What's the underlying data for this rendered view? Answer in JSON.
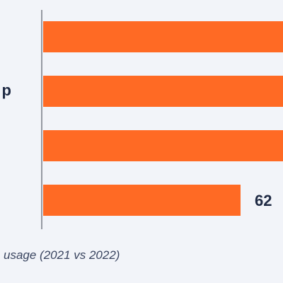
{
  "chart_data": {
    "type": "bar",
    "orientation": "horizontal",
    "categories": [
      "",
      "p",
      "",
      ""
    ],
    "values": [
      null,
      null,
      null,
      62
    ],
    "value_labels": [
      "",
      "",
      "",
      "62"
    ],
    "bar_color": "#ff6a24",
    "grid": false,
    "legend": "none",
    "caption": "usage (2021 vs 2022)"
  }
}
